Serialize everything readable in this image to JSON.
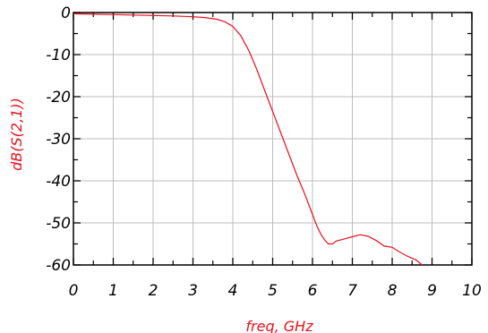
{
  "chart_data": {
    "type": "line",
    "title": "",
    "xlabel": "freq, GHz",
    "ylabel": "dB(S(2,1))",
    "xlim": [
      0,
      10
    ],
    "ylim": [
      -60,
      0
    ],
    "x_ticks": [
      0,
      1,
      2,
      3,
      4,
      5,
      6,
      7,
      8,
      9,
      10
    ],
    "x_tick_labels": [
      "0",
      "1",
      "2",
      "3",
      "4",
      "5",
      "6",
      "7",
      "8",
      "9",
      "10"
    ],
    "y_ticks": [
      0,
      -10,
      -20,
      -30,
      -40,
      -50,
      -60
    ],
    "y_tick_labels": [
      "0",
      "-10",
      "-20",
      "-30",
      "-40",
      "-50",
      "-60"
    ],
    "grid": true,
    "colors": {
      "series": "#e8101b",
      "grid": "#bdbdbd",
      "axis": "#000000",
      "ylabel": "#e8101b",
      "xlabel": "#e8101b"
    },
    "series": [
      {
        "x": [
          0,
          0.5,
          1,
          1.5,
          2,
          2.5,
          3,
          3.3,
          3.6,
          3.8,
          4.0,
          4.2,
          4.4,
          4.6,
          4.8,
          5.0,
          5.2,
          5.4,
          5.6,
          5.8,
          6.0,
          6.1,
          6.2,
          6.3,
          6.4,
          6.5,
          6.6,
          6.8,
          7.0,
          7.2,
          7.4,
          7.6,
          7.8,
          8.0,
          8.2,
          8.4,
          8.6,
          8.75
        ],
        "y": [
          -0.3,
          -0.4,
          -0.5,
          -0.6,
          -0.7,
          -0.8,
          -1.0,
          -1.2,
          -1.6,
          -2.2,
          -3.3,
          -5.5,
          -9.0,
          -13.5,
          -18.5,
          -23.5,
          -28.5,
          -33.5,
          -38.5,
          -43.0,
          -48.0,
          -50.5,
          -52.5,
          -54.0,
          -55.0,
          -55.0,
          -54.3,
          -53.8,
          -53.3,
          -52.8,
          -53.2,
          -54.2,
          -55.5,
          -55.8,
          -57.0,
          -58.0,
          -58.8,
          -60.0
        ]
      }
    ]
  }
}
